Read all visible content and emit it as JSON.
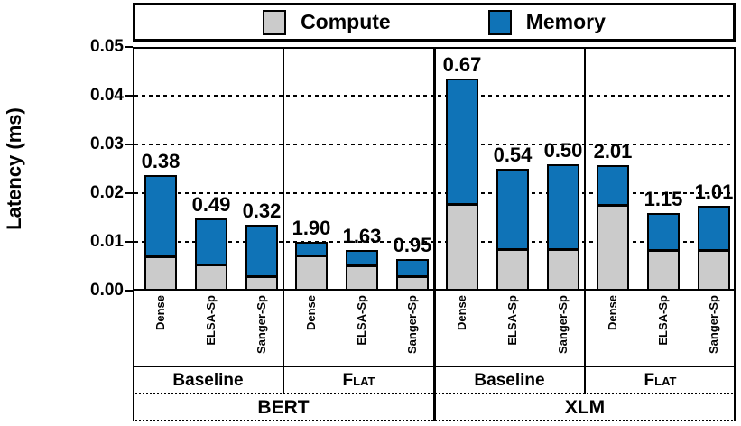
{
  "colors": {
    "compute": "#cbcbcb",
    "memory": "#0f73b7",
    "axis": "#000000",
    "background": "#ffffff"
  },
  "chart_data": {
    "type": "bar",
    "stacked": true,
    "title": "",
    "xlabel": "",
    "ylabel": "Latency (ms)",
    "ylim": [
      0,
      0.05
    ],
    "yticks": [
      "0.00",
      "0.01",
      "0.02",
      "0.03",
      "0.04",
      "0.05"
    ],
    "grid": "dotted-horizontal",
    "legend": [
      "Compute",
      "Memory"
    ],
    "legend_position": "top",
    "unit": "ms",
    "groups": [
      {
        "model": "BERT",
        "setting": "Baseline",
        "bars": [
          {
            "category": "Dense",
            "compute": 0.007,
            "memory": 0.0167,
            "annotation": "0.38"
          },
          {
            "category": "ELSA-Sp",
            "compute": 0.0053,
            "memory": 0.0094,
            "annotation": "0.49"
          },
          {
            "category": "Sanger-Sp",
            "compute": 0.0029,
            "memory": 0.0106,
            "annotation": "0.32"
          }
        ]
      },
      {
        "model": "BERT",
        "setting": "Flat",
        "bars": [
          {
            "category": "Dense",
            "compute": 0.0072,
            "memory": 0.0028,
            "annotation": "1.90"
          },
          {
            "category": "ELSA-Sp",
            "compute": 0.0051,
            "memory": 0.0031,
            "annotation": "1.63"
          },
          {
            "category": "Sanger-Sp",
            "compute": 0.0029,
            "memory": 0.0036,
            "annotation": "0.95"
          }
        ]
      },
      {
        "model": "XLM",
        "setting": "Baseline",
        "bars": [
          {
            "category": "Dense",
            "compute": 0.0177,
            "memory": 0.0258,
            "annotation": "0.67"
          },
          {
            "category": "ELSA-Sp",
            "compute": 0.0085,
            "memory": 0.0164,
            "annotation": "0.54"
          },
          {
            "category": "Sanger-Sp",
            "compute": 0.0085,
            "memory": 0.0174,
            "annotation": "0.50"
          }
        ]
      },
      {
        "model": "XLM",
        "setting": "Flat",
        "bars": [
          {
            "category": "Dense",
            "compute": 0.0176,
            "memory": 0.0082,
            "annotation": "2.01"
          },
          {
            "category": "ELSA-Sp",
            "compute": 0.0084,
            "memory": 0.0075,
            "annotation": "1.15"
          },
          {
            "category": "Sanger-Sp",
            "compute": 0.0084,
            "memory": 0.009,
            "annotation": "1.01"
          }
        ]
      }
    ],
    "model_spans": [
      {
        "label": "BERT",
        "group_indexes": [
          0,
          1
        ]
      },
      {
        "label": "XLM",
        "group_indexes": [
          2,
          3
        ]
      }
    ]
  }
}
